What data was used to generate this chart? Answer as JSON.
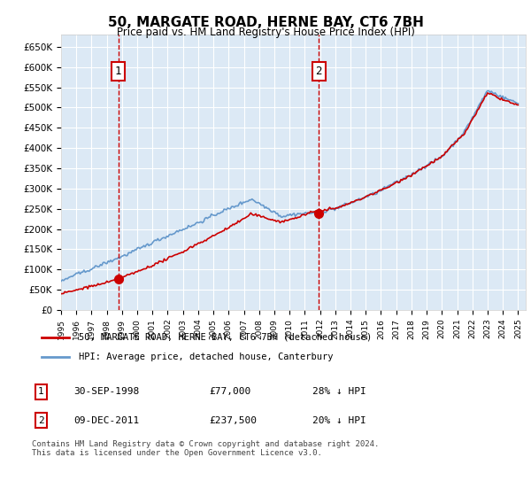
{
  "title": "50, MARGATE ROAD, HERNE BAY, CT6 7BH",
  "subtitle": "Price paid vs. HM Land Registry's House Price Index (HPI)",
  "ylim": [
    0,
    680000
  ],
  "yticks": [
    0,
    50000,
    100000,
    150000,
    200000,
    250000,
    300000,
    350000,
    400000,
    450000,
    500000,
    550000,
    600000,
    650000
  ],
  "xlim_start": 1995.0,
  "xlim_end": 2025.5,
  "bg_color": "#dce9f5",
  "grid_color": "#ffffff",
  "transaction1_date": 1998.75,
  "transaction1_price": 77000,
  "transaction1_label": "1",
  "transaction2_date": 2011.92,
  "transaction2_price": 237500,
  "transaction2_label": "2",
  "legend1": "50, MARGATE ROAD, HERNE BAY, CT6 7BH (detached house)",
  "legend2": "HPI: Average price, detached house, Canterbury",
  "note1_label": "1",
  "note1_date": "30-SEP-1998",
  "note1_price": "£77,000",
  "note1_info": "28% ↓ HPI",
  "note2_label": "2",
  "note2_date": "09-DEC-2011",
  "note2_price": "£237,500",
  "note2_info": "20% ↓ HPI",
  "footer": "Contains HM Land Registry data © Crown copyright and database right 2024.\nThis data is licensed under the Open Government Licence v3.0.",
  "line_color_property": "#cc0000",
  "line_color_hpi": "#6699cc",
  "marker_color_property": "#cc0000",
  "dashed_line_color": "#cc0000"
}
